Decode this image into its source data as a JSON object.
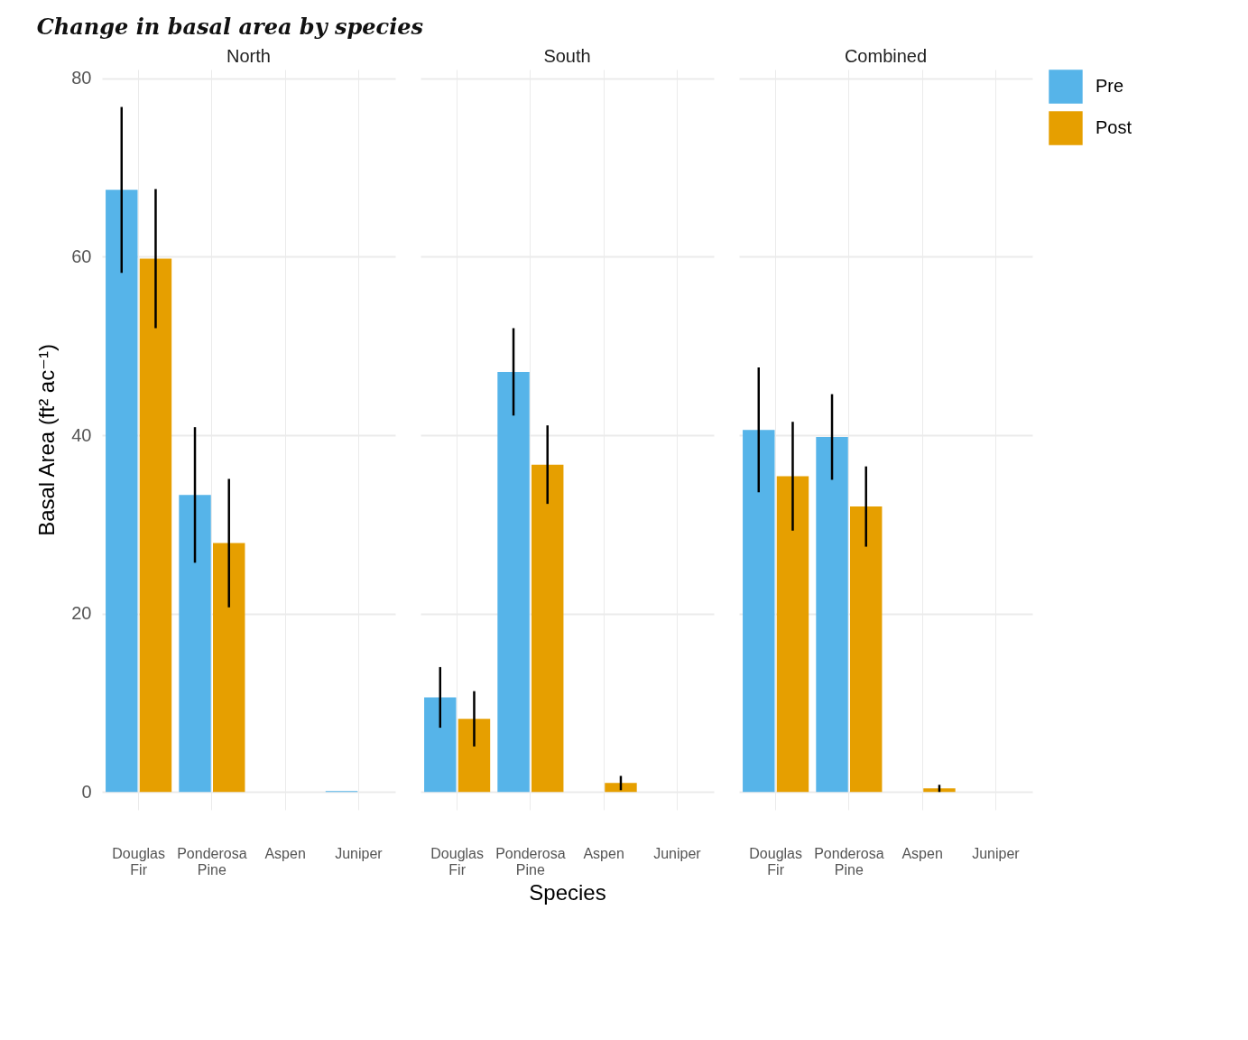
{
  "chart_data": [
    {
      "type": "bar",
      "title": "Change in basal area by species",
      "subtitle": "North",
      "ylabel": "Basal Area (ft² ac⁻¹)",
      "categories": [
        "Douglas Fir",
        "Ponderosa Pine",
        "Aspen",
        "Juniper"
      ],
      "ylim": [
        -2,
        81
      ],
      "yticks": [
        0,
        20,
        40,
        60,
        80
      ],
      "grid": true,
      "series": [
        {
          "color": "#56b4e9",
          "values": [
            67.5,
            33.3,
            0,
            0.1
          ],
          "errors": [
            9.3,
            7.6,
            null,
            null
          ]
        },
        {
          "color": "#e69f00",
          "values": [
            59.8,
            27.9,
            0,
            0
          ],
          "errors": [
            7.8,
            7.2,
            null,
            null
          ]
        }
      ]
    },
    {
      "type": "bar",
      "subtitle": "South",
      "xlabel": "Species",
      "categories": [
        "Douglas Fir",
        "Ponderosa Pine",
        "Aspen",
        "Juniper"
      ],
      "ylim": [
        -2,
        81
      ],
      "yticks": [
        0,
        20,
        40,
        60,
        80
      ],
      "grid": true,
      "tick_labels": "x",
      "series": [
        {
          "color": "#56b4e9",
          "values": [
            10.6,
            47.1,
            0,
            0
          ],
          "errors": [
            3.4,
            4.9,
            null,
            null
          ]
        },
        {
          "color": "#e69f00",
          "values": [
            8.2,
            36.7,
            1.0,
            0
          ],
          "errors": [
            3.1,
            4.4,
            0.8,
            null
          ]
        }
      ]
    },
    {
      "type": "bar",
      "subtitle": "Combined",
      "categories": [
        "Douglas Fir",
        "Ponderosa Pine",
        "Aspen",
        "Juniper"
      ],
      "ylim": [
        -2,
        81
      ],
      "yticks": [
        0,
        20,
        40,
        60,
        80
      ],
      "grid": true,
      "legend": "right",
      "tick_labels": "x",
      "series": [
        {
          "name": "Pre",
          "color": "#56b4e9",
          "values": [
            40.6,
            39.8,
            0,
            0
          ],
          "errors": [
            7.0,
            4.8,
            null,
            null
          ]
        },
        {
          "name": "Post",
          "color": "#e69f00",
          "values": [
            35.4,
            32.0,
            0.4,
            0
          ],
          "errors": [
            6.1,
            4.5,
            0.4,
            null
          ]
        }
      ]
    }
  ]
}
